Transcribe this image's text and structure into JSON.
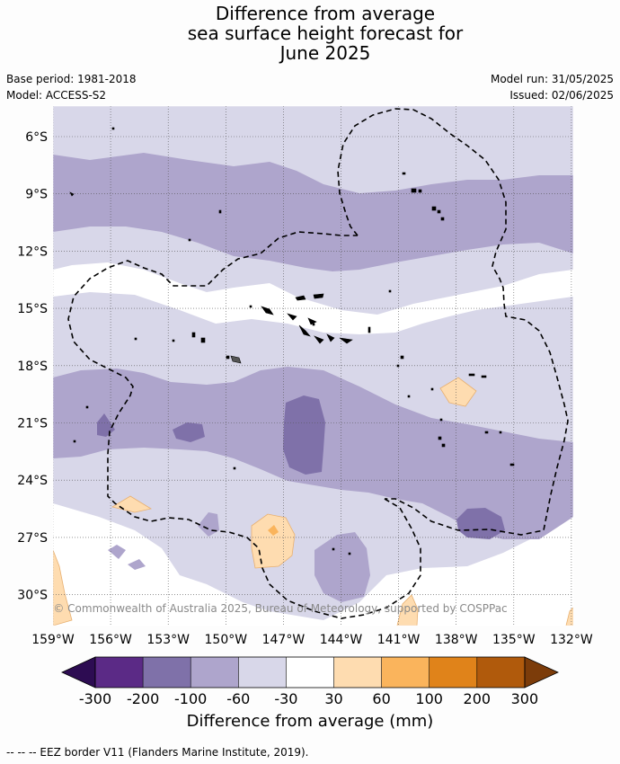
{
  "title_lines": [
    "Difference from average",
    "sea surface height forecast for",
    "June 2025"
  ],
  "meta": {
    "base_period": "Base period: 1981-2018",
    "model": "Model: ACCESS-S2",
    "model_run": "Model run: 31/05/2025",
    "issued": "Issued: 02/06/2025"
  },
  "map": {
    "lat_labels": [
      "6°S",
      "9°S",
      "12°S",
      "15°S",
      "18°S",
      "21°S",
      "24°S",
      "27°S",
      "30°S"
    ],
    "lon_labels": [
      "159°W",
      "156°W",
      "153°W",
      "150°W",
      "147°W",
      "144°W",
      "141°W",
      "138°W",
      "135°W",
      "132°W"
    ],
    "copyright": "© Commonwealth of Australia 2025, Bureau of Meteorology, supported by COSPPac"
  },
  "colorbar": {
    "ticks": [
      "-300",
      "-200",
      "-100",
      "-60",
      "-30",
      "30",
      "60",
      "100",
      "200",
      "300"
    ],
    "colors": [
      "#2d0c52",
      "#5b2a86",
      "#7f71a9",
      "#aea5cc",
      "#d8d7e9",
      "#ffffff",
      "#fedcb0",
      "#fab45c",
      "#e0831a",
      "#b05a0c",
      "#7c3c0a"
    ],
    "label": "Difference from average (mm)"
  },
  "footer": "--  --  -- EEZ border V11 (Flanders Marine Institute, 2019)."
}
